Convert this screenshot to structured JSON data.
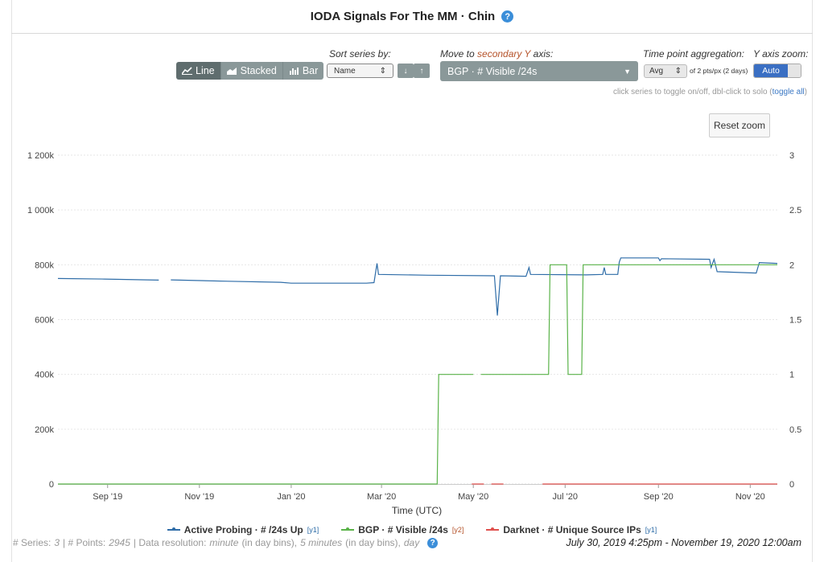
{
  "header": {
    "title": "IODA Signals For The MM · Chin",
    "help_icon": "?"
  },
  "controls": {
    "view_buttons": [
      {
        "icon": "line-chart-icon",
        "label": "Line",
        "active": true
      },
      {
        "icon": "area-chart-icon",
        "label": "Stacked",
        "active": false
      },
      {
        "icon": "bar-chart-icon",
        "label": "Bar",
        "active": false
      }
    ],
    "sort_label": "Sort series by:",
    "sort_value": "Name",
    "sort_down": "↓",
    "sort_up": "↑",
    "move_label_pre": "Move to ",
    "move_label_accent": "secondary Y",
    "move_label_post": " axis:",
    "move_value": "BGP · # Visible /24s",
    "agg_label": "Time point aggregation:",
    "agg_value": "Avg",
    "agg_note": "of 2 pts/px (2 days)",
    "zoom_label": "Y axis zoom:",
    "zoom_value": "Auto",
    "hint_text": "click series to toggle on/off, dbl-click to solo (",
    "hint_link": "toggle all",
    "hint_end": ")",
    "reset_zoom": "Reset zoom"
  },
  "colors": {
    "active_probing": "#2f6da8",
    "bgp": "#5ab349",
    "darknet": "#e0504d",
    "button": "#8a9899",
    "button_active": "#5f6d6e"
  },
  "chart_data": {
    "type": "line",
    "xlabel": "Time (UTC)",
    "x_range": [
      "2019-07-30",
      "2020-11-19"
    ],
    "x_ticks": [
      "Sep '19",
      "Nov '19",
      "Jan '20",
      "Mar '20",
      "May '20",
      "Jul '20",
      "Sep '20",
      "Nov '20"
    ],
    "y1_ticks": [
      "0",
      "200k",
      "400k",
      "600k",
      "800k",
      "1 000k",
      "1 200k"
    ],
    "y1_lim": [
      0,
      1200000
    ],
    "y2_ticks": [
      "0",
      "0.5",
      "1",
      "1.5",
      "2",
      "2.5",
      "3"
    ],
    "y2_lim": [
      0,
      3
    ],
    "grid": true,
    "legend_position": "bottom",
    "series": [
      {
        "name": "Active Probing · # /24s Up",
        "axis": "y1",
        "axis_tag": "[y1]",
        "points": [
          [
            "2019-07-30",
            750000
          ],
          [
            "2019-08-30",
            748000
          ],
          [
            "2019-10-05",
            744000
          ],
          [
            "2019-10-11",
            null
          ],
          [
            "2019-10-13",
            745000
          ],
          [
            "2019-11-20",
            740000
          ],
          [
            "2019-12-25",
            736000
          ],
          [
            "2020-01-01",
            733000
          ],
          [
            "2020-02-20",
            733000
          ],
          [
            "2020-02-25",
            735000
          ],
          [
            "2020-02-27",
            805000
          ],
          [
            "2020-02-28",
            765000
          ],
          [
            "2020-04-01",
            762000
          ],
          [
            "2020-05-15",
            760000
          ],
          [
            "2020-05-17",
            615000
          ],
          [
            "2020-05-19",
            760000
          ],
          [
            "2020-06-05",
            758000
          ],
          [
            "2020-06-07",
            790000
          ],
          [
            "2020-06-08",
            765000
          ],
          [
            "2020-07-15",
            763000
          ],
          [
            "2020-07-26",
            765000
          ],
          [
            "2020-07-27",
            790000
          ],
          [
            "2020-07-28",
            765000
          ],
          [
            "2020-08-05",
            765000
          ],
          [
            "2020-08-06",
            810000
          ],
          [
            "2020-08-07",
            825000
          ],
          [
            "2020-09-01",
            825000
          ],
          [
            "2020-09-02",
            815000
          ],
          [
            "2020-09-03",
            822000
          ],
          [
            "2020-10-05",
            820000
          ],
          [
            "2020-10-06",
            790000
          ],
          [
            "2020-10-08",
            820000
          ],
          [
            "2020-10-10",
            775000
          ],
          [
            "2020-11-05",
            770000
          ],
          [
            "2020-11-07",
            808000
          ],
          [
            "2020-11-19",
            805000
          ]
        ]
      },
      {
        "name": "BGP · # Visible /24s",
        "axis": "y2",
        "axis_tag": "[y2]",
        "points": [
          [
            "2019-07-30",
            0
          ],
          [
            "2020-04-07",
            0
          ],
          [
            "2020-04-08",
            1
          ],
          [
            "2020-05-01",
            1
          ],
          [
            "2020-05-02",
            null
          ],
          [
            "2020-05-06",
            1
          ],
          [
            "2020-06-20",
            1
          ],
          [
            "2020-06-21",
            2
          ],
          [
            "2020-07-02",
            2
          ],
          [
            "2020-07-03",
            1
          ],
          [
            "2020-07-12",
            1
          ],
          [
            "2020-07-13",
            2
          ],
          [
            "2020-11-19",
            2
          ]
        ]
      },
      {
        "name": "Darknet · # Unique Source IPs",
        "axis": "y1",
        "axis_tag": "[y1]",
        "points": [
          [
            "2020-04-30",
            0
          ],
          [
            "2020-05-08",
            0
          ],
          [
            "2020-05-09",
            null
          ],
          [
            "2020-05-13",
            0
          ],
          [
            "2020-05-21",
            0
          ],
          [
            "2020-05-22",
            null
          ],
          [
            "2020-06-16",
            0
          ],
          [
            "2020-11-19",
            0
          ]
        ]
      }
    ]
  },
  "footer": {
    "series_label": "# Series: ",
    "series_count": "3",
    "points_label": " | # Points: ",
    "points_count": "2945",
    "res_label": " | Data resolution: ",
    "res_1": "minute",
    "res_2": " (in day bins), ",
    "res_3": "5 minutes",
    "res_4": " (in day bins), ",
    "res_5": "day",
    "help_icon": "?",
    "time_range": "July 30, 2019 4:25pm - November 19, 2020 12:00am"
  }
}
